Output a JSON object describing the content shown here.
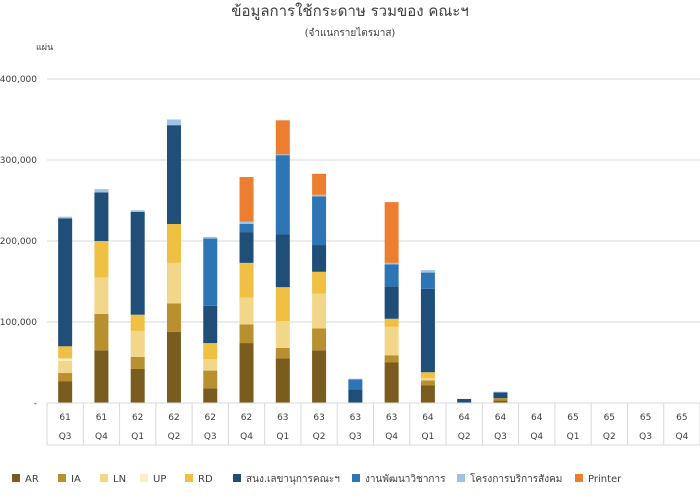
{
  "chart_data": {
    "type": "bar",
    "stacked": true,
    "title": "ข้อมูลการใช้กระดาษ รวมของ คณะฯ",
    "subtitle": "(จำแนกรายไตรมาส)",
    "ylabel": "แผ่น",
    "ylim": [
      0,
      400000
    ],
    "yticks": [
      "-",
      "100,000",
      "200,000",
      "300,000",
      "400,000"
    ],
    "grid": true,
    "legend_position": "bottom",
    "years": [
      "61",
      "61",
      "62",
      "62",
      "62",
      "62",
      "63",
      "63",
      "63",
      "63",
      "64",
      "64",
      "64",
      "64",
      "65",
      "65",
      "65",
      "65"
    ],
    "quarters": [
      "Q3",
      "Q4",
      "Q1",
      "Q2",
      "Q3",
      "Q4",
      "Q1",
      "Q2",
      "Q3",
      "Q4",
      "Q1",
      "Q2",
      "Q3",
      "Q4",
      "Q1",
      "Q2",
      "Q3",
      "Q4"
    ],
    "series": [
      {
        "name": "AR",
        "color": "#7a5c1e",
        "values": [
          27000,
          65000,
          42000,
          88000,
          18000,
          74000,
          55000,
          65000,
          0,
          50000,
          22000,
          0,
          3000,
          0,
          0,
          0,
          0,
          0
        ]
      },
      {
        "name": "IA",
        "color": "#b8902f",
        "values": [
          10000,
          45000,
          15000,
          35000,
          22000,
          23000,
          13000,
          27000,
          0,
          9000,
          6000,
          0,
          3000,
          0,
          0,
          0,
          0,
          0
        ]
      },
      {
        "name": "LN",
        "color": "#f2d68a",
        "values": [
          15000,
          45000,
          32000,
          50000,
          14000,
          33000,
          33000,
          43000,
          0,
          35000,
          3000,
          0,
          0,
          0,
          0,
          0,
          0,
          0
        ]
      },
      {
        "name": "UP",
        "color": "#faf0c8",
        "values": [
          3000,
          0,
          0,
          0,
          0,
          0,
          0,
          0,
          0,
          0,
          0,
          0,
          0,
          0,
          0,
          0,
          0,
          0
        ]
      },
      {
        "name": "RD",
        "color": "#f0c043",
        "values": [
          15000,
          45000,
          20000,
          48000,
          20000,
          43000,
          42000,
          27000,
          0,
          10000,
          7000,
          0,
          0,
          0,
          0,
          0,
          0,
          0
        ]
      },
      {
        "name": "สนง.เลขานุการคณะฯ",
        "color": "#1f4e79",
        "values": [
          158000,
          60000,
          127000,
          122000,
          46000,
          38000,
          65000,
          33000,
          17000,
          40000,
          103000,
          5000,
          7000,
          0,
          0,
          0,
          0,
          0
        ]
      },
      {
        "name": "งานพัฒนาวิชาการ",
        "color": "#2e75b6",
        "values": [
          0,
          0,
          0,
          0,
          83000,
          10000,
          98000,
          60000,
          12000,
          27000,
          20000,
          0,
          0,
          0,
          0,
          0,
          0,
          0
        ]
      },
      {
        "name": "โครงการบริการสังคม",
        "color": "#9dc3e6",
        "values": [
          2000,
          4000,
          2000,
          7000,
          2000,
          3000,
          1000,
          2000,
          1000,
          2000,
          3000,
          0,
          1000,
          0,
          0,
          0,
          0,
          0
        ]
      },
      {
        "name": "Printer",
        "color": "#ed7d31",
        "values": [
          0,
          0,
          0,
          0,
          0,
          55000,
          42000,
          26000,
          0,
          75000,
          0,
          0,
          0,
          0,
          0,
          0,
          0,
          0
        ]
      }
    ]
  }
}
